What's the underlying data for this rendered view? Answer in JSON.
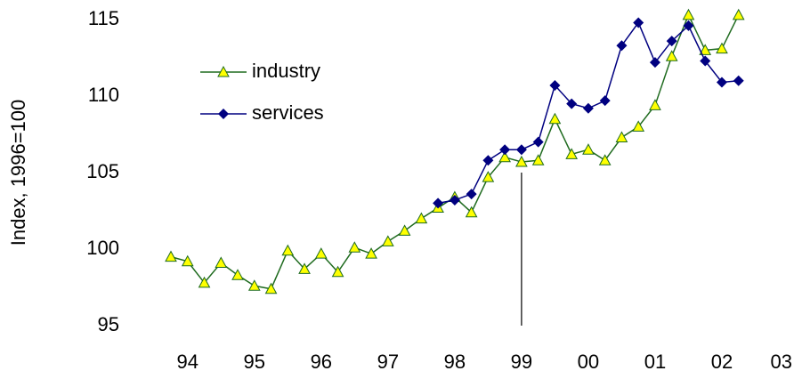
{
  "chart_data": {
    "type": "line",
    "y_label": "Index, 1996=100",
    "x": [
      1993.75,
      1994,
      1994.25,
      1994.5,
      1994.75,
      1995,
      1995.25,
      1995.5,
      1995.75,
      1996,
      1996.25,
      1996.5,
      1996.75,
      1997,
      1997.25,
      1997.5,
      1997.75,
      1998,
      1998.25,
      1998.5,
      1998.75,
      1999,
      1999.25,
      1999.5,
      1999.75,
      2000,
      2000.25,
      2000.5,
      2000.75,
      2001,
      2001.25,
      2001.5,
      2001.75,
      2002,
      2002.25
    ],
    "series": [
      {
        "name": "industry",
        "color": "#1f6b1f",
        "marker": "triangle",
        "marker_color": "#ffff00",
        "values": [
          99.5,
          99.2,
          97.8,
          99.1,
          98.3,
          97.6,
          97.4,
          99.9,
          98.7,
          99.7,
          98.5,
          100.1,
          99.7,
          100.5,
          101.2,
          102.0,
          102.7,
          103.4,
          102.4,
          104.7,
          106.0,
          105.7,
          105.8,
          108.5,
          106.2,
          106.5,
          105.8,
          107.3,
          108.0,
          109.4,
          112.6,
          115.3,
          113.0,
          113.1,
          115.3
        ]
      },
      {
        "name": "services",
        "color": "#000080",
        "marker": "diamond",
        "marker_color": "#000080",
        "values": [
          null,
          null,
          null,
          null,
          null,
          null,
          null,
          null,
          null,
          null,
          null,
          null,
          null,
          null,
          null,
          null,
          103.0,
          103.2,
          103.6,
          105.8,
          106.5,
          106.5,
          107.0,
          110.7,
          109.5,
          109.2,
          109.7,
          113.3,
          114.8,
          112.2,
          113.6,
          114.6,
          112.3,
          110.9,
          111.0
        ]
      }
    ],
    "marker_line": {
      "x": 1999,
      "from": 95,
      "to": 105
    },
    "xlim": [
      1993.75,
      2003
    ],
    "xticks": [
      {
        "value": 1994,
        "label": "94"
      },
      {
        "value": 1995,
        "label": "95"
      },
      {
        "value": 1996,
        "label": "96"
      },
      {
        "value": 1997,
        "label": "97"
      },
      {
        "value": 1998,
        "label": "98"
      },
      {
        "value": 1999,
        "label": "99"
      },
      {
        "value": 2000,
        "label": "00"
      },
      {
        "value": 2001,
        "label": "01"
      },
      {
        "value": 2002,
        "label": "02"
      },
      {
        "value": 2003,
        "label": "03"
      }
    ],
    "ylim": [
      95,
      115
    ],
    "yticks": [
      95,
      100,
      105,
      110,
      115
    ],
    "legend": "upper-left",
    "grid": false
  }
}
